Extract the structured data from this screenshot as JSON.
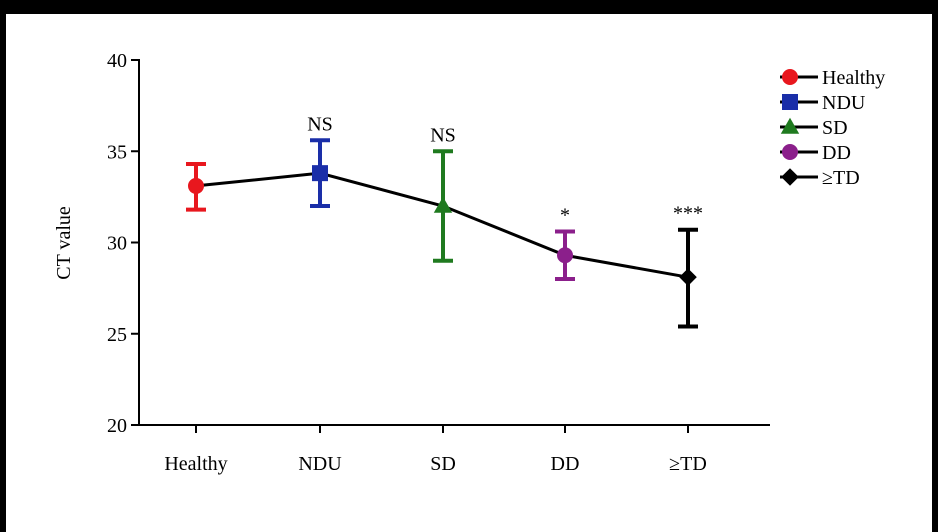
{
  "chart_data": {
    "type": "line",
    "title": "",
    "xlabel": "",
    "ylabel": "CT value",
    "ylim": [
      20,
      40
    ],
    "yticks": [
      20,
      25,
      30,
      35,
      40
    ],
    "categories": [
      "Healthy",
      "NDU",
      "SD",
      "DD",
      "≥TD"
    ],
    "values": [
      33.1,
      33.8,
      32.0,
      29.3,
      28.1
    ],
    "error_low": [
      31.8,
      32.0,
      29.0,
      28.0,
      25.4
    ],
    "error_high": [
      34.3,
      35.6,
      35.0,
      30.6,
      30.7
    ],
    "significance": [
      "",
      "NS",
      "NS",
      "*",
      "***"
    ],
    "legend_position": "right",
    "grid": false,
    "series": [
      {
        "name": "Healthy",
        "color": "#e8171e",
        "marker": "circle"
      },
      {
        "name": "NDU",
        "color": "#1a2ea8",
        "marker": "square"
      },
      {
        "name": "SD",
        "color": "#1f7a1f",
        "marker": "triangle"
      },
      {
        "name": "DD",
        "color": "#8b1f8b",
        "marker": "circle"
      },
      {
        "name": "≥TD",
        "color": "#000000",
        "marker": "diamond"
      }
    ]
  }
}
